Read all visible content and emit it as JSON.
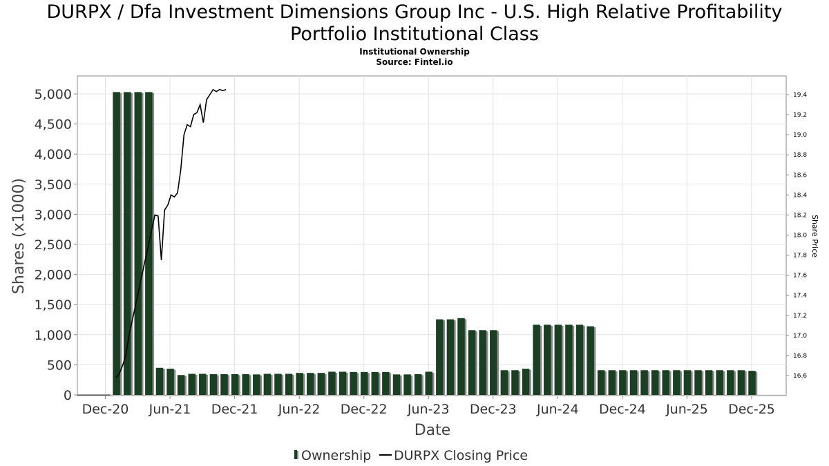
{
  "header": {
    "title_line1": "DURPX / Dfa Investment Dimensions Group Inc - U.S. High Relative Profitability",
    "title_line2": "Portfolio Institutional Class",
    "subtitle": "Institutional Ownership",
    "source": "Source: Fintel.io"
  },
  "chart_data": {
    "type": "bar",
    "title": "DURPX / Dfa Investment Dimensions Group Inc - U.S. High Relative Profitability Portfolio Institutional Class",
    "subtitle": "Institutional Ownership — Source: Fintel.io",
    "xlabel": "Date",
    "ylabel": "Shares (x1000)",
    "y2label": "Share Price",
    "ylim": [
      0,
      5150
    ],
    "y2lim": [
      16.4,
      19.6
    ],
    "yticks": [
      0,
      500,
      1000,
      1500,
      2000,
      2500,
      3000,
      3500,
      4000,
      4500,
      5000
    ],
    "ytick_labels": [
      "0",
      "500",
      "1,000",
      "1,500",
      "2,000",
      "2,500",
      "3,000",
      "3,500",
      "4,000",
      "4,500",
      "5,000"
    ],
    "y2ticks": [
      16.6,
      16.8,
      17.0,
      17.2,
      17.4,
      17.6,
      17.8,
      18.0,
      18.2,
      18.4,
      18.6,
      18.8,
      19.0,
      19.2,
      19.4
    ],
    "y2tick_labels": [
      "16.6",
      "16.8",
      "17.0",
      "17.2",
      "17.4",
      "17.6",
      "17.8",
      "18.0",
      "18.2",
      "18.4",
      "18.6",
      "18.8",
      "19.0",
      "19.2",
      "19.4"
    ],
    "xtick_labels": [
      "Dec-20",
      "Jun-21",
      "Dec-21",
      "Jun-22",
      "Dec-22",
      "Jun-23",
      "Dec-23",
      "Jun-24",
      "Dec-24",
      "Jun-25",
      "Dec-25"
    ],
    "grid": true,
    "legend_position": "bottom-center",
    "series": [
      {
        "name": "Ownership",
        "type": "bar",
        "color": "#1a3f22",
        "x_months_from_dec20": [
          1,
          2,
          3,
          4,
          5,
          6,
          7,
          8,
          9,
          10,
          11,
          12,
          13,
          14,
          15,
          16,
          17,
          18,
          19,
          20,
          21,
          22,
          23,
          24,
          25,
          26,
          27,
          28,
          29,
          30,
          31,
          32,
          33,
          34,
          35,
          36,
          37,
          38,
          39,
          40,
          41,
          42,
          43,
          44,
          45,
          46,
          47,
          48,
          49,
          50,
          51,
          52,
          53,
          54,
          55,
          56,
          57,
          58,
          59,
          60
        ],
        "values": [
          5030,
          5030,
          5030,
          5030,
          450,
          435,
          330,
          350,
          350,
          345,
          345,
          345,
          345,
          340,
          350,
          350,
          350,
          365,
          365,
          365,
          385,
          385,
          380,
          380,
          380,
          380,
          340,
          340,
          345,
          385,
          1255,
          1255,
          1275,
          1075,
          1075,
          1075,
          410,
          410,
          435,
          1165,
          1165,
          1165,
          1165,
          1165,
          1140,
          410,
          410,
          410,
          410,
          410,
          410,
          410,
          410,
          410,
          410,
          410,
          410,
          410,
          410,
          400
        ]
      },
      {
        "name": "DURPX Closing Price",
        "type": "line",
        "axis": "right",
        "color": "#000000",
        "x_months_from_dec20": [
          1.0,
          1.3,
          1.6,
          1.9,
          2.2,
          2.5,
          2.8,
          3.1,
          3.4,
          3.7,
          4.0,
          4.3,
          4.6,
          4.9,
          5.2,
          5.5,
          5.8,
          6.1,
          6.4,
          6.7,
          7.0,
          7.3,
          7.6,
          7.9,
          8.2,
          8.5,
          8.8,
          9.1,
          9.4,
          9.7,
          10.0,
          10.3,
          10.6,
          10.9,
          11.2
        ],
        "values": [
          16.58,
          16.62,
          16.7,
          16.8,
          17.0,
          17.15,
          17.3,
          17.45,
          17.6,
          17.75,
          17.9,
          18.05,
          18.2,
          18.19,
          17.75,
          18.25,
          18.3,
          18.4,
          18.38,
          18.42,
          18.65,
          19.0,
          19.1,
          19.08,
          19.2,
          19.22,
          19.3,
          19.12,
          19.35,
          19.4,
          19.45,
          19.43,
          19.45,
          19.44,
          19.45
        ]
      }
    ]
  },
  "legend": {
    "items": [
      {
        "label": "Ownership",
        "icon": "bar-swatch-icon"
      },
      {
        "label": "DURPX Closing Price",
        "icon": "line-swatch-icon"
      }
    ]
  }
}
